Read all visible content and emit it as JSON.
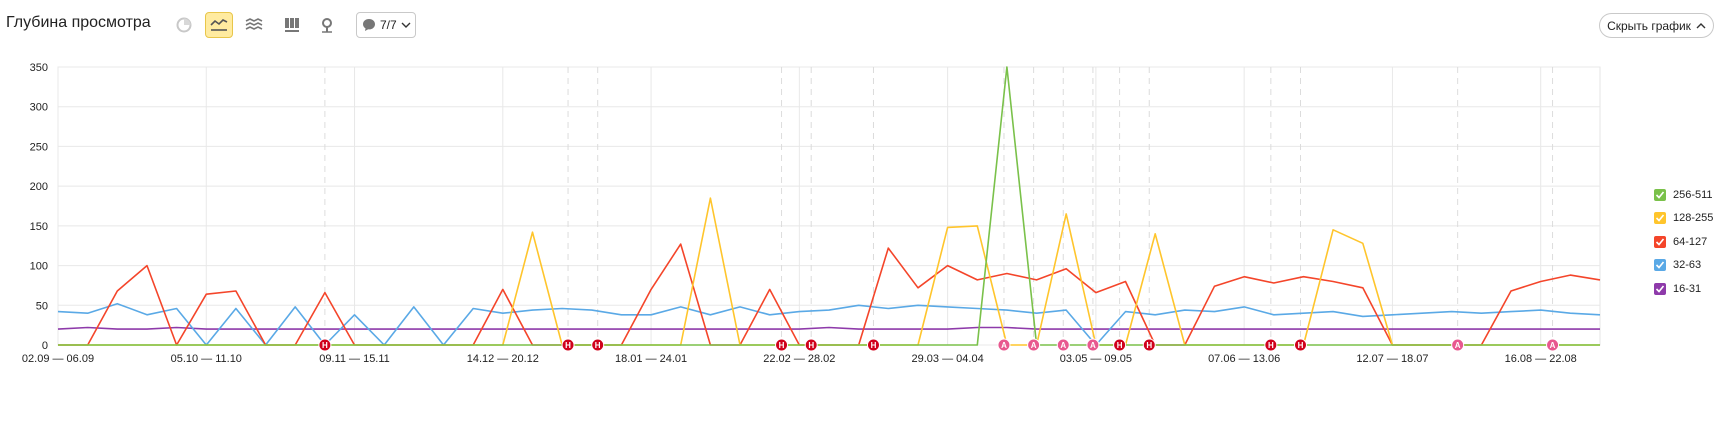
{
  "header": {
    "title": "Глубина просмотра",
    "notes_count": "7/7",
    "hide_chart_label": "Скрыть график"
  },
  "icons": {
    "toolbar": [
      "pie-chart-icon",
      "line-chart-icon",
      "area-chart-icon",
      "bar-chart-icon",
      "map-pin-icon"
    ],
    "notes": "speech-bubble-icon",
    "dropdown": "chevron-down-icon",
    "collapse": "chevron-up-icon"
  },
  "colors": {
    "256-511": "#7ac14a",
    "128-255": "#ffc52c",
    "64-127": "#f4452a",
    "32-63": "#5aa9e6",
    "16-31": "#8e3aaa",
    "accent_active": "#ffeba0",
    "marker_h": "#d0021b",
    "marker_a": "#e8588f"
  },
  "chart_data": {
    "type": "line",
    "ylim": [
      0,
      350
    ],
    "yticks": [
      0,
      50,
      100,
      150,
      200,
      250,
      300,
      350
    ],
    "grid": true,
    "legend_position": "right",
    "xtick_labels": [
      "02.09 — 06.09",
      "05.10 — 11.10",
      "09.11 — 15.11",
      "14.12 — 20.12",
      "18.01 — 24.01",
      "22.02 — 28.02",
      "29.03 — 04.04",
      "03.05 — 09.05",
      "07.06 — 13.06",
      "12.07 — 18.07",
      "16.08 — 22.08"
    ],
    "xtick_positions": [
      0,
      5,
      10,
      15,
      20,
      25,
      30,
      35,
      40,
      45,
      50
    ],
    "n_points": 53,
    "series": [
      {
        "name": "256-511",
        "color": "#7ac14a",
        "values": [
          0,
          0,
          0,
          0,
          0,
          0,
          0,
          0,
          0,
          0,
          0,
          0,
          0,
          0,
          0,
          0,
          0,
          0,
          0,
          0,
          0,
          0,
          0,
          0,
          0,
          0,
          0,
          0,
          0,
          0,
          0,
          0,
          350,
          0,
          0,
          0,
          0,
          0,
          0,
          0,
          0,
          0,
          0,
          0,
          0,
          0,
          0,
          0,
          0,
          0,
          0,
          0,
          0
        ]
      },
      {
        "name": "128-255",
        "color": "#ffc52c",
        "values": [
          0,
          0,
          0,
          0,
          0,
          0,
          0,
          0,
          0,
          0,
          0,
          0,
          0,
          0,
          0,
          0,
          142,
          0,
          0,
          0,
          0,
          0,
          185,
          0,
          0,
          0,
          0,
          0,
          0,
          0,
          148,
          150,
          0,
          0,
          165,
          0,
          0,
          140,
          0,
          0,
          0,
          0,
          0,
          145,
          128,
          0,
          0,
          0,
          0,
          0,
          0,
          0,
          0
        ]
      },
      {
        "name": "64-127",
        "color": "#f4452a",
        "values": [
          0,
          0,
          68,
          100,
          0,
          64,
          68,
          0,
          0,
          66,
          0,
          0,
          0,
          0,
          0,
          70,
          0,
          0,
          0,
          0,
          70,
          127,
          0,
          0,
          70,
          0,
          0,
          0,
          122,
          72,
          100,
          82,
          90,
          82,
          96,
          66,
          80,
          0,
          0,
          74,
          86,
          78,
          86,
          80,
          72,
          0,
          0,
          0,
          0,
          68,
          80,
          88,
          82
        ]
      },
      {
        "name": "32-63",
        "color": "#5aa9e6",
        "values": [
          42,
          40,
          52,
          38,
          46,
          0,
          46,
          0,
          48,
          0,
          38,
          0,
          48,
          0,
          46,
          40,
          44,
          46,
          44,
          38,
          38,
          48,
          38,
          48,
          38,
          42,
          44,
          50,
          46,
          50,
          48,
          46,
          44,
          40,
          44,
          0,
          42,
          38,
          44,
          42,
          48,
          38,
          40,
          42,
          36,
          38,
          40,
          42,
          40,
          42,
          44,
          40,
          38
        ]
      },
      {
        "name": "16-31",
        "color": "#8e3aaa",
        "values": [
          20,
          22,
          20,
          20,
          22,
          20,
          20,
          20,
          20,
          20,
          20,
          20,
          20,
          20,
          20,
          20,
          20,
          20,
          20,
          20,
          20,
          20,
          20,
          20,
          20,
          20,
          22,
          20,
          20,
          20,
          20,
          22,
          22,
          20,
          20,
          20,
          20,
          20,
          20,
          20,
          20,
          20,
          20,
          20,
          20,
          20,
          20,
          20,
          20,
          20,
          20,
          20,
          20
        ]
      }
    ],
    "annotations": [
      {
        "label": "Н",
        "kind": "H",
        "x": 9
      },
      {
        "label": "Н",
        "kind": "H",
        "x": 17.2
      },
      {
        "label": "Н",
        "kind": "H",
        "x": 18.2
      },
      {
        "label": "Н",
        "kind": "H",
        "x": 24.4
      },
      {
        "label": "Н",
        "kind": "H",
        "x": 25.4
      },
      {
        "label": "Н",
        "kind": "H",
        "x": 27.5
      },
      {
        "label": "А",
        "kind": "A",
        "x": 31.9
      },
      {
        "label": "А",
        "kind": "A",
        "x": 32.9
      },
      {
        "label": "А",
        "kind": "A",
        "x": 33.9
      },
      {
        "label": "А",
        "kind": "A",
        "x": 34.9
      },
      {
        "label": "Н",
        "kind": "H",
        "x": 35.8
      },
      {
        "label": "Н",
        "kind": "H",
        "x": 36.8
      },
      {
        "label": "Н",
        "kind": "H",
        "x": 40.9
      },
      {
        "label": "Н",
        "kind": "H",
        "x": 41.9
      },
      {
        "label": "А",
        "kind": "A",
        "x": 47.2
      },
      {
        "label": "А",
        "kind": "A",
        "x": 50.4
      }
    ]
  },
  "legend": [
    {
      "label": "256-511",
      "color": "#7ac14a"
    },
    {
      "label": "128-255",
      "color": "#ffc52c"
    },
    {
      "label": "64-127",
      "color": "#f4452a"
    },
    {
      "label": "32-63",
      "color": "#5aa9e6"
    },
    {
      "label": "16-31",
      "color": "#8e3aaa"
    }
  ]
}
